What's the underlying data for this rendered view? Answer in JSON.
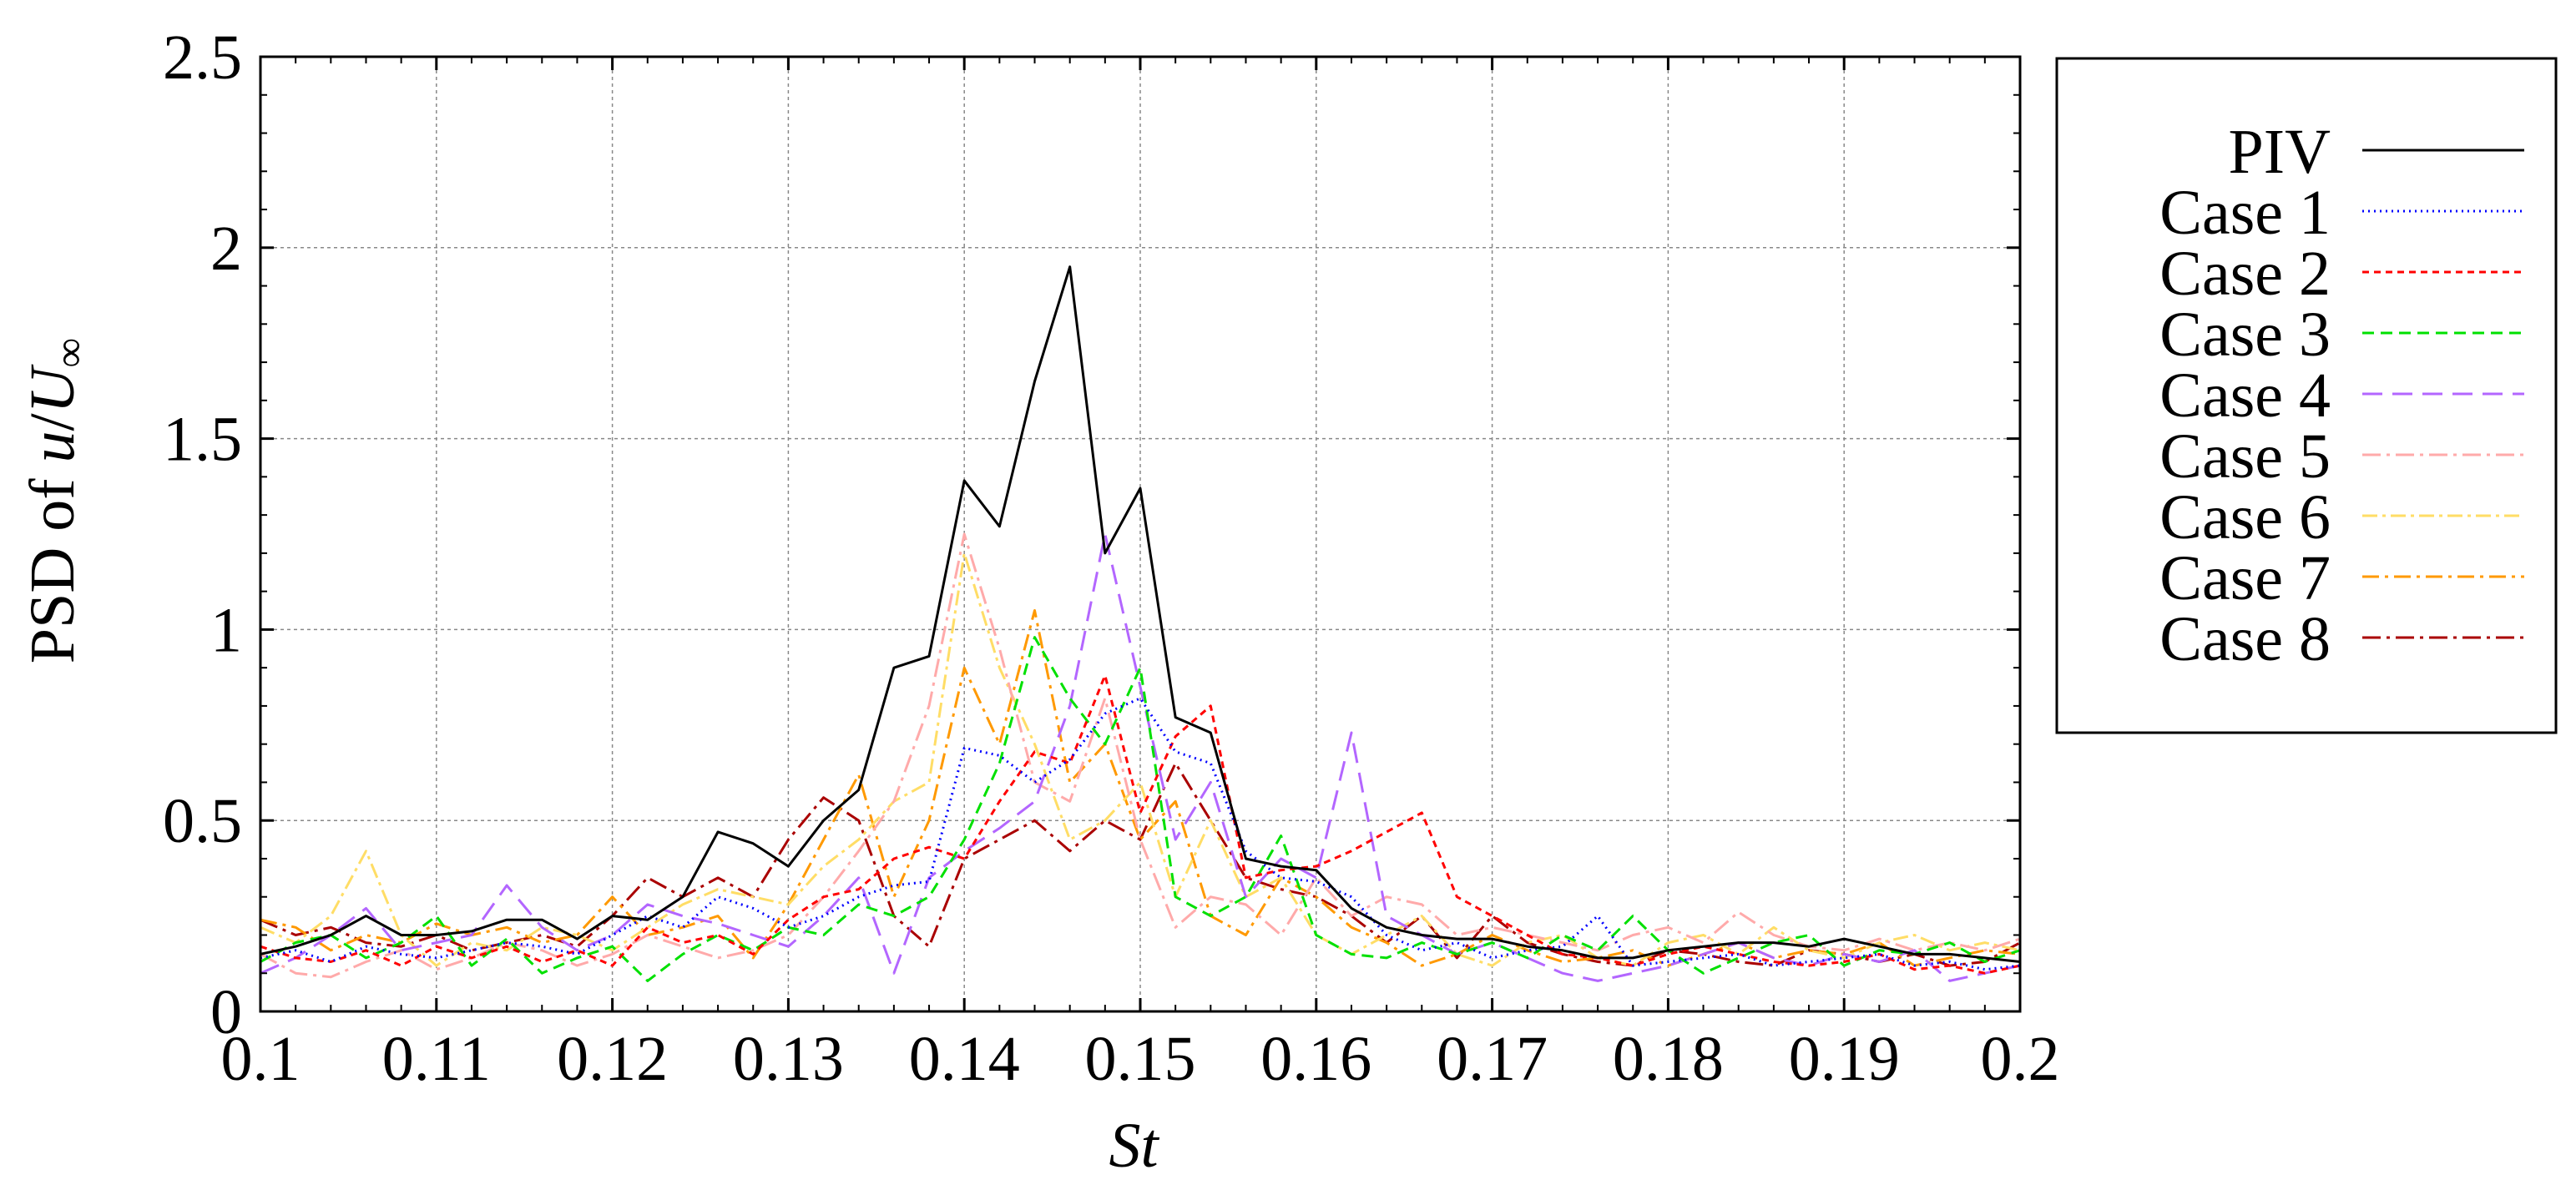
{
  "chart_data": {
    "type": "line",
    "title": "",
    "xlabel": "St",
    "ylabel": {
      "prefix": "PSD of ",
      "u": "u",
      "slash": "/",
      "U": "U",
      "sub": "∞"
    },
    "xlim": [
      0.1,
      0.2
    ],
    "ylim": [
      0,
      2.5
    ],
    "xticks": [
      0.1,
      0.11,
      0.12,
      0.13,
      0.14,
      0.15,
      0.16,
      0.17,
      0.18,
      0.19,
      0.2
    ],
    "xtick_labels": [
      "0.1",
      "0.11",
      "0.12",
      "0.13",
      "0.14",
      "0.15",
      "0.16",
      "0.17",
      "0.18",
      "0.19",
      "0.2"
    ],
    "yticks": [
      0,
      0.5,
      1,
      1.5,
      2,
      2.5
    ],
    "ytick_labels": [
      "0",
      "0.5",
      "1",
      "1.5",
      "2",
      "2.5"
    ],
    "grid": true,
    "legend_position": "right, outside plot",
    "x": [
      0.1,
      0.102,
      0.104,
      0.106,
      0.108,
      0.11,
      0.112,
      0.114,
      0.116,
      0.118,
      0.12,
      0.122,
      0.124,
      0.126,
      0.128,
      0.13,
      0.132,
      0.134,
      0.136,
      0.138,
      0.14,
      0.142,
      0.144,
      0.146,
      0.148,
      0.15,
      0.152,
      0.154,
      0.156,
      0.158,
      0.16,
      0.162,
      0.164,
      0.166,
      0.168,
      0.17,
      0.172,
      0.174,
      0.176,
      0.178,
      0.18,
      0.182,
      0.184,
      0.186,
      0.188,
      0.19,
      0.192,
      0.194,
      0.196,
      0.198,
      0.2
    ],
    "series": [
      {
        "name": "PIV",
        "color": "#000000",
        "dash": "",
        "width": 3,
        "values": [
          0.15,
          0.17,
          0.2,
          0.25,
          0.2,
          0.2,
          0.21,
          0.24,
          0.24,
          0.19,
          0.25,
          0.24,
          0.3,
          0.47,
          0.44,
          0.38,
          0.5,
          0.58,
          0.9,
          0.93,
          1.39,
          1.27,
          1.65,
          1.95,
          1.2,
          1.37,
          0.77,
          0.73,
          0.4,
          0.38,
          0.37,
          0.27,
          0.22,
          0.2,
          0.19,
          0.19,
          0.17,
          0.16,
          0.14,
          0.14,
          0.16,
          0.17,
          0.18,
          0.18,
          0.17,
          0.19,
          0.17,
          0.15,
          0.15,
          0.14,
          0.13
        ]
      },
      {
        "name": "Case 1",
        "color": "#0000ff",
        "dash": "2 5",
        "width": 3,
        "values": [
          0.14,
          0.16,
          0.13,
          0.17,
          0.15,
          0.14,
          0.16,
          0.18,
          0.17,
          0.15,
          0.2,
          0.25,
          0.22,
          0.3,
          0.27,
          0.22,
          0.25,
          0.3,
          0.33,
          0.34,
          0.69,
          0.67,
          0.6,
          0.66,
          0.78,
          0.82,
          0.68,
          0.65,
          0.42,
          0.35,
          0.34,
          0.3,
          0.2,
          0.16,
          0.18,
          0.14,
          0.16,
          0.17,
          0.25,
          0.12,
          0.13,
          0.14,
          0.15,
          0.12,
          0.13,
          0.14,
          0.15,
          0.12,
          0.13,
          0.11,
          0.12
        ]
      },
      {
        "name": "Case 2",
        "color": "#ff0000",
        "dash": "8 6",
        "width": 3,
        "values": [
          0.17,
          0.14,
          0.13,
          0.16,
          0.12,
          0.17,
          0.14,
          0.17,
          0.13,
          0.16,
          0.12,
          0.22,
          0.18,
          0.2,
          0.15,
          0.24,
          0.3,
          0.32,
          0.4,
          0.43,
          0.4,
          0.55,
          0.68,
          0.65,
          0.88,
          0.52,
          0.72,
          0.8,
          0.35,
          0.37,
          0.38,
          0.42,
          0.47,
          0.52,
          0.3,
          0.25,
          0.2,
          0.15,
          0.14,
          0.12,
          0.15,
          0.17,
          0.15,
          0.13,
          0.12,
          0.13,
          0.15,
          0.11,
          0.12,
          0.1,
          0.12
        ]
      },
      {
        "name": "Case 3",
        "color": "#00e000",
        "dash": "14 8",
        "width": 3,
        "values": [
          0.13,
          0.18,
          0.2,
          0.14,
          0.18,
          0.25,
          0.12,
          0.19,
          0.1,
          0.14,
          0.17,
          0.08,
          0.15,
          0.2,
          0.16,
          0.22,
          0.2,
          0.28,
          0.25,
          0.3,
          0.45,
          0.65,
          0.98,
          0.82,
          0.7,
          0.9,
          0.3,
          0.25,
          0.3,
          0.46,
          0.2,
          0.15,
          0.14,
          0.18,
          0.15,
          0.18,
          0.14,
          0.2,
          0.16,
          0.25,
          0.16,
          0.1,
          0.14,
          0.18,
          0.2,
          0.12,
          0.16,
          0.15,
          0.18,
          0.13,
          0.16
        ]
      },
      {
        "name": "Case 4",
        "color": "#b366ff",
        "dash": "24 12",
        "width": 3,
        "values": [
          0.1,
          0.14,
          0.2,
          0.27,
          0.16,
          0.18,
          0.2,
          0.33,
          0.22,
          0.16,
          0.2,
          0.28,
          0.25,
          0.23,
          0.2,
          0.17,
          0.25,
          0.35,
          0.1,
          0.35,
          0.42,
          0.48,
          0.55,
          0.8,
          1.25,
          0.85,
          0.45,
          0.6,
          0.3,
          0.4,
          0.35,
          0.73,
          0.25,
          0.2,
          0.15,
          0.18,
          0.14,
          0.1,
          0.08,
          0.1,
          0.12,
          0.15,
          0.18,
          0.14,
          0.12,
          0.15,
          0.13,
          0.16,
          0.08,
          0.1,
          0.12
        ]
      },
      {
        "name": "Case 5",
        "color": "#ffaaaa",
        "dash": "22 7 4 7",
        "width": 3,
        "values": [
          0.15,
          0.1,
          0.09,
          0.13,
          0.16,
          0.11,
          0.14,
          0.18,
          0.16,
          0.12,
          0.15,
          0.2,
          0.17,
          0.14,
          0.16,
          0.2,
          0.3,
          0.42,
          0.55,
          0.8,
          1.25,
          0.95,
          0.6,
          0.55,
          0.82,
          0.45,
          0.22,
          0.3,
          0.28,
          0.2,
          0.35,
          0.25,
          0.3,
          0.28,
          0.2,
          0.22,
          0.2,
          0.18,
          0.16,
          0.2,
          0.22,
          0.18,
          0.26,
          0.2,
          0.17,
          0.16,
          0.19,
          0.16,
          0.18,
          0.16,
          0.19
        ]
      },
      {
        "name": "Case 6",
        "color": "#ffdd66",
        "dash": "18 6 4 6",
        "width": 3,
        "values": [
          0.22,
          0.18,
          0.25,
          0.42,
          0.2,
          0.12,
          0.18,
          0.16,
          0.22,
          0.2,
          0.16,
          0.22,
          0.28,
          0.32,
          0.3,
          0.28,
          0.38,
          0.45,
          0.55,
          0.6,
          1.2,
          0.9,
          0.7,
          0.45,
          0.5,
          0.6,
          0.3,
          0.5,
          0.3,
          0.35,
          0.2,
          0.15,
          0.2,
          0.25,
          0.15,
          0.12,
          0.18,
          0.2,
          0.14,
          0.12,
          0.18,
          0.2,
          0.15,
          0.22,
          0.16,
          0.14,
          0.18,
          0.2,
          0.16,
          0.18,
          0.16
        ]
      },
      {
        "name": "Case 7",
        "color": "#ff9900",
        "dash": "20 7 4 7",
        "width": 3,
        "values": [
          0.24,
          0.22,
          0.16,
          0.2,
          0.18,
          0.23,
          0.2,
          0.22,
          0.18,
          0.2,
          0.3,
          0.2,
          0.22,
          0.25,
          0.14,
          0.28,
          0.45,
          0.62,
          0.3,
          0.5,
          0.9,
          0.7,
          1.05,
          0.6,
          0.7,
          0.45,
          0.55,
          0.25,
          0.2,
          0.35,
          0.3,
          0.22,
          0.18,
          0.12,
          0.15,
          0.2,
          0.16,
          0.13,
          0.14,
          0.16,
          0.12,
          0.15,
          0.18,
          0.14,
          0.16,
          0.15,
          0.18,
          0.12,
          0.14,
          0.16,
          0.15
        ]
      },
      {
        "name": "Case 8",
        "color": "#aa0000",
        "dash": "22 7 4 7",
        "width": 3,
        "values": [
          0.24,
          0.2,
          0.22,
          0.18,
          0.17,
          0.2,
          0.16,
          0.18,
          0.2,
          0.17,
          0.25,
          0.35,
          0.3,
          0.35,
          0.3,
          0.45,
          0.56,
          0.5,
          0.25,
          0.17,
          0.4,
          0.45,
          0.5,
          0.42,
          0.5,
          0.45,
          0.65,
          0.5,
          0.35,
          0.32,
          0.3,
          0.25,
          0.18,
          0.25,
          0.14,
          0.25,
          0.18,
          0.15,
          0.13,
          0.12,
          0.16,
          0.15,
          0.13,
          0.12,
          0.16,
          0.15,
          0.13,
          0.15,
          0.12,
          0.13,
          0.18
        ]
      }
    ]
  }
}
